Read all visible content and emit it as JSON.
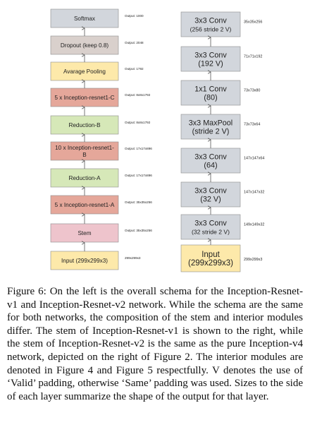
{
  "colors": {
    "softmax": "#d2d6dc",
    "dropout": "#d9d0cc",
    "pooling": "#fde9aa",
    "inception": "#e5a79a",
    "reduction": "#d6e8b8",
    "stem": "#eec4cc",
    "input": "#fde9aa",
    "conv": "#d2d6dc",
    "border": "#8c8c8c",
    "arrow": "#555555"
  },
  "left_stack": [
    {
      "label": "Softmax",
      "output": "Output: 1000",
      "color": "softmax"
    },
    {
      "label": "Dropout (keep 0.8)",
      "output": "Output: 2048",
      "color": "dropout"
    },
    {
      "label": "Avarage Pooling",
      "output": "Output: 1792",
      "color": "pooling"
    },
    {
      "label": "5 x Inception-resnet1-C",
      "output": "Output: 8x8x1792",
      "color": "inception"
    },
    {
      "label": "Reduction-B",
      "output": "Output: 8x8x1792",
      "color": "reduction"
    },
    {
      "label": "10 x Inception-resnet1-B",
      "output": "Output: 17x17x896",
      "color": "inception"
    },
    {
      "label": "Reduction-A",
      "output": "Output: 17x17x896",
      "color": "reduction"
    },
    {
      "label": "5 x Inception-resnet1-A",
      "output": "Output: 35x35x256",
      "color": "inception"
    },
    {
      "label": "Stem",
      "output": "Output: 35x35x256",
      "color": "stem"
    },
    {
      "label": "Input (299x299x3)",
      "output": "299x299x3",
      "color": "input"
    }
  ],
  "right_stack": [
    {
      "line1": "3x3 Conv",
      "line2": "(256 stride 2 V)",
      "output": "35x35x256",
      "color": "conv"
    },
    {
      "line1": "3x3 Conv",
      "line2": "(192 V)",
      "output": "71x71x192",
      "color": "conv"
    },
    {
      "line1": "1x1 Conv",
      "line2": "(80)",
      "output": "73x73x80",
      "color": "conv"
    },
    {
      "line1": "3x3 MaxPool",
      "line2": "(stride 2 V)",
      "output": "73x73x64",
      "color": "conv"
    },
    {
      "line1": "3x3 Conv",
      "line2": "(64)",
      "output": "147x147x64",
      "color": "conv"
    },
    {
      "line1": "3x3 Conv",
      "line2": "(32 V)",
      "output": "147x147x32",
      "color": "conv"
    },
    {
      "line1": "3x3 Conv",
      "line2": "(32 stride 2 V)",
      "output": "149x149x32",
      "color": "conv"
    },
    {
      "line1": "Input",
      "line2": "(299x299x3)",
      "output": "299x299x3",
      "color": "input"
    }
  ],
  "caption": "Figure 6: On the left is the overall schema for the Inception-Resnet-v1 and Inception-Resnet-v2 network. While the schema are the same for both networks, the composition of the stem and interior modules differ. The stem of Inception-Resnet-v1 is shown to the right, while the stem of Inception-Resnet-v2 is the same as the pure Inception-v4 network, depicted on the right of Figure 2. The interior modules are denoted in Figure 4 and Figure 5 respectfully. V denotes the use of ‘Valid’ padding, otherwise ‘Same’ padding was used. Sizes to the side of each layer summarize the shape of the output for that layer."
}
